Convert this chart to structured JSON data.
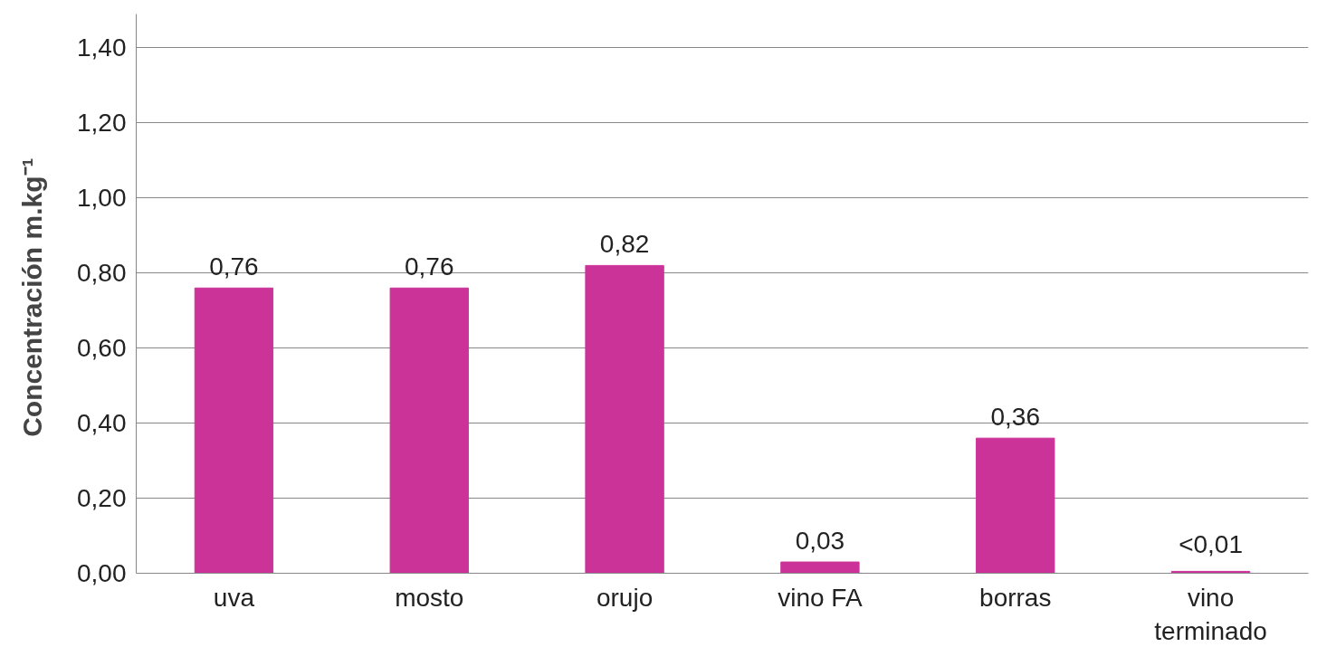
{
  "chart_data": {
    "type": "bar",
    "ylabel": "Concentración  m.kg⁻¹",
    "categories": [
      "uva",
      "mosto",
      "orujo",
      "vino FA",
      "borras",
      "vino\nterminado"
    ],
    "values": [
      0.76,
      0.76,
      0.82,
      0.03,
      0.36,
      0.005
    ],
    "value_labels": [
      "0,76",
      "0,76",
      "0,82",
      "0,03",
      "0,36",
      "<0,01"
    ],
    "color": "#cc3399",
    "ylim": [
      0,
      1.49
    ],
    "yticks": [
      {
        "value": 0,
        "label": "0,00"
      },
      {
        "value": 0.2,
        "label": "0,20"
      },
      {
        "value": 0.4,
        "label": "0,40"
      },
      {
        "value": 0.6,
        "label": "0,60"
      },
      {
        "value": 0.8,
        "label": "0,80"
      },
      {
        "value": 1.0,
        "label": "1,00"
      },
      {
        "value": 1.2,
        "label": "1,20"
      },
      {
        "value": 1.4,
        "label": "1,40"
      }
    ],
    "grid": "y"
  }
}
